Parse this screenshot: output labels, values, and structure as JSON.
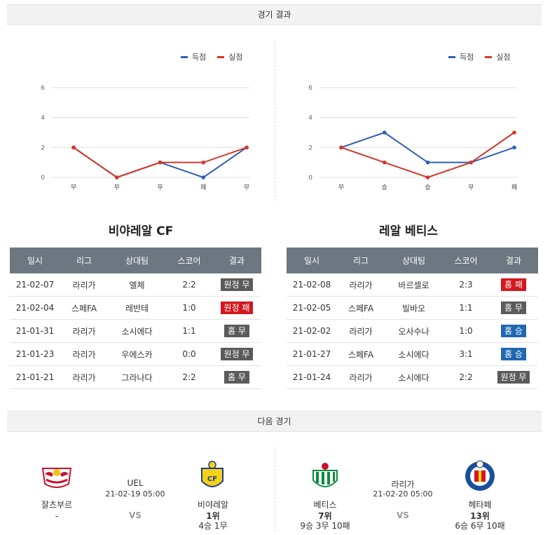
{
  "headers": {
    "results": "경기 결과",
    "next": "다음 경기"
  },
  "legend": {
    "scored": "득점",
    "conceded": "실점"
  },
  "colors": {
    "scored": "#2f5fb5",
    "conceded": "#d4372a",
    "home_win": "#2167b0",
    "loss": "#d4171e",
    "draw": "#5b5b5b"
  },
  "chart_data": [
    {
      "type": "line",
      "categories": [
        "무",
        "무",
        "무",
        "패",
        "무"
      ],
      "series": [
        {
          "name": "득점",
          "values": [
            2,
            0,
            1,
            0,
            2
          ]
        },
        {
          "name": "실점",
          "values": [
            2,
            0,
            1,
            1,
            2
          ]
        }
      ],
      "ylim": [
        0,
        6
      ],
      "yticks": [
        0,
        2,
        4,
        6
      ],
      "grid": true,
      "legend": "top-right"
    },
    {
      "type": "line",
      "categories": [
        "무",
        "승",
        "승",
        "무",
        "패"
      ],
      "series": [
        {
          "name": "득점",
          "values": [
            2,
            3,
            1,
            1,
            2
          ]
        },
        {
          "name": "실점",
          "values": [
            2,
            1,
            0,
            1,
            3
          ]
        }
      ],
      "ylim": [
        0,
        6
      ],
      "yticks": [
        0,
        2,
        4,
        6
      ],
      "grid": true,
      "legend": "top-right"
    }
  ],
  "teams": [
    {
      "name": "비야레알 CF",
      "columns": [
        "일시",
        "리그",
        "상대팀",
        "스코어",
        "결과"
      ],
      "rows": [
        {
          "date": "21-02-07",
          "league": "라리가",
          "opponent": "엘체",
          "score": "2:2",
          "result": "원정 무",
          "kind": "draw"
        },
        {
          "date": "21-02-04",
          "league": "스페FA",
          "opponent": "레반테",
          "score": "1:0",
          "result": "원정 패",
          "kind": "loss"
        },
        {
          "date": "21-01-31",
          "league": "라리가",
          "opponent": "소시에다",
          "score": "1:1",
          "result": "홈 무",
          "kind": "draw"
        },
        {
          "date": "21-01-23",
          "league": "라리가",
          "opponent": "우에스카",
          "score": "0:0",
          "result": "원정 무",
          "kind": "draw"
        },
        {
          "date": "21-01-21",
          "league": "라리가",
          "opponent": "그라나다",
          "score": "2:2",
          "result": "홈 무",
          "kind": "draw"
        }
      ]
    },
    {
      "name": "레알 베티스",
      "columns": [
        "일시",
        "리그",
        "상대팀",
        "스코어",
        "결과"
      ],
      "rows": [
        {
          "date": "21-02-08",
          "league": "라리가",
          "opponent": "바르셀로",
          "score": "2:3",
          "result": "홈 패",
          "kind": "loss"
        },
        {
          "date": "21-02-05",
          "league": "스페FA",
          "opponent": "빌바오",
          "score": "1:1",
          "result": "홈 무",
          "kind": "draw"
        },
        {
          "date": "21-02-02",
          "league": "라리가",
          "opponent": "오사수나",
          "score": "1:0",
          "result": "홈 승",
          "kind": "win"
        },
        {
          "date": "21-01-27",
          "league": "스페FA",
          "opponent": "소시에다",
          "score": "3:1",
          "result": "홈 승",
          "kind": "win"
        },
        {
          "date": "21-01-24",
          "league": "라리가",
          "opponent": "소시에다",
          "score": "2:2",
          "result": "원정 무",
          "kind": "draw"
        }
      ]
    }
  ],
  "next_matches": [
    {
      "home": {
        "name": "잘츠부르",
        "rank": "-",
        "record": ""
      },
      "competition": "UEL",
      "datetime": "21-02-19 05:00",
      "vs": "VS",
      "away": {
        "name": "비야레알",
        "rank": "1위",
        "record": "4승 1무"
      }
    },
    {
      "home": {
        "name": "베티스",
        "rank": "7위",
        "record": "9승 3무 10패"
      },
      "competition": "라리가",
      "datetime": "21-02-20 05:00",
      "vs": "VS",
      "away": {
        "name": "헤타페",
        "rank": "13위",
        "record": "6승 6무 10패"
      }
    }
  ]
}
